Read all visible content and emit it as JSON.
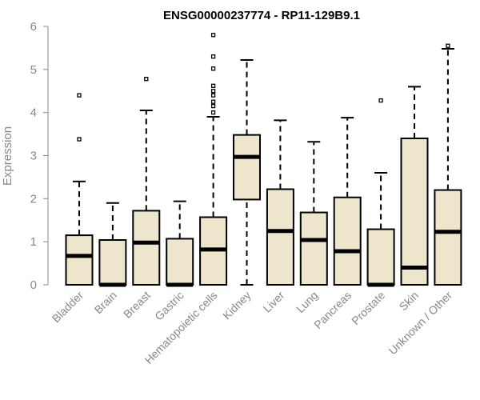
{
  "chart_data": {
    "type": "box",
    "title": "ENSG00000237774 - RP11-129B9.1",
    "xlabel": "",
    "ylabel": "Expression",
    "ylim": [
      0,
      6
    ],
    "yticks": [
      "0",
      "1",
      "2",
      "3",
      "4",
      "5",
      "6"
    ],
    "grid": false,
    "box_fill": "#ede6cc",
    "box_stroke": "#000000",
    "axis_color": "#888888",
    "categories": [
      "Bladder",
      "Brain",
      "Breast",
      "Gastric",
      "Hematopoietic cells",
      "Kidney",
      "Liver",
      "Lung",
      "Pancreas",
      "Prostate",
      "Skin",
      "Unknown / Other"
    ],
    "boxes": [
      {
        "whisker_low": 0,
        "q1": 0,
        "median": 0.67,
        "q3": 1.15,
        "whisker_high": 2.4,
        "outliers": [
          3.38,
          4.4
        ]
      },
      {
        "whisker_low": 0,
        "q1": 0,
        "median": 0.0,
        "q3": 1.04,
        "whisker_high": 1.9,
        "outliers": []
      },
      {
        "whisker_low": 0,
        "q1": 0,
        "median": 0.98,
        "q3": 1.72,
        "whisker_high": 4.05,
        "outliers": [
          4.78
        ]
      },
      {
        "whisker_low": 0,
        "q1": 0,
        "median": 0.0,
        "q3": 1.07,
        "whisker_high": 1.94,
        "outliers": []
      },
      {
        "whisker_low": 0,
        "q1": 0,
        "median": 0.82,
        "q3": 1.57,
        "whisker_high": 3.9,
        "outliers": [
          4.0,
          4.15,
          4.25,
          4.4,
          4.5,
          4.62,
          5.02,
          5.3,
          5.8
        ]
      },
      {
        "whisker_low": 0,
        "q1": 1.98,
        "median": 2.97,
        "q3": 3.48,
        "whisker_high": 5.22,
        "outliers": []
      },
      {
        "whisker_low": 0,
        "q1": 0,
        "median": 1.25,
        "q3": 2.22,
        "whisker_high": 3.82,
        "outliers": []
      },
      {
        "whisker_low": 0,
        "q1": 0,
        "median": 1.04,
        "q3": 1.68,
        "whisker_high": 3.32,
        "outliers": []
      },
      {
        "whisker_low": 0,
        "q1": 0,
        "median": 0.78,
        "q3": 2.03,
        "whisker_high": 3.88,
        "outliers": []
      },
      {
        "whisker_low": 0,
        "q1": 0,
        "median": 0.0,
        "q3": 1.29,
        "whisker_high": 2.6,
        "outliers": [
          4.28
        ]
      },
      {
        "whisker_low": 0,
        "q1": 0,
        "median": 0.4,
        "q3": 3.4,
        "whisker_high": 4.6,
        "outliers": []
      },
      {
        "whisker_low": 0,
        "q1": 0,
        "median": 1.23,
        "q3": 2.2,
        "whisker_high": 5.48,
        "outliers": [
          5.55
        ]
      }
    ]
  }
}
